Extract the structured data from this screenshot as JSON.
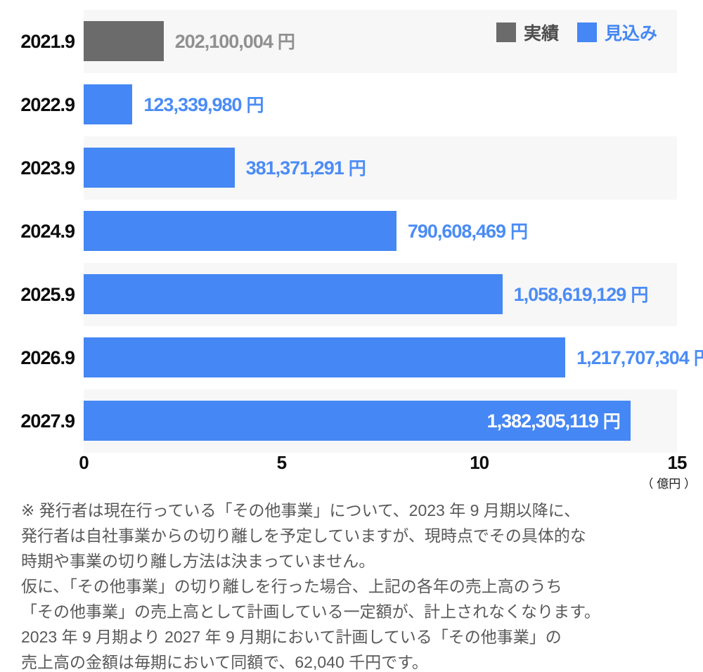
{
  "chart_data": {
    "type": "bar",
    "orientation": "horizontal",
    "categories": [
      "2021.9",
      "2022.9",
      "2023.9",
      "2024.9",
      "2025.9",
      "2026.9",
      "2027.9"
    ],
    "values": [
      202100004,
      123339980,
      381371291,
      790608469,
      1058619129,
      1217707304,
      1382305119
    ],
    "unit": "円",
    "x_axis": {
      "max_yen": 1500000000,
      "ticks_oku": [
        0,
        5,
        10,
        15
      ],
      "max_oku": 15,
      "unit_label": "（ 億円 ）"
    },
    "legend": [
      {
        "label": "実績",
        "color": "#6b6b6b",
        "text_color": "#4d4d4d"
      },
      {
        "label": "見込み",
        "color": "#4587f4",
        "text_color": "#4587f4"
      }
    ],
    "legend_position": "top-right",
    "bars": [
      {
        "year": "2021.9",
        "value_yen": 202100004,
        "label": "202,100,004",
        "series": "実績",
        "bar_color": "#6b6b6b",
        "label_color": "#909090",
        "label_inside": false
      },
      {
        "year": "2022.9",
        "value_yen": 123339980,
        "label": "123,339,980",
        "series": "見込み",
        "bar_color": "#4587f4",
        "label_color": "#4b8cf6",
        "label_inside": false
      },
      {
        "year": "2023.9",
        "value_yen": 381371291,
        "label": "381,371,291",
        "series": "見込み",
        "bar_color": "#4587f4",
        "label_color": "#4b8cf6",
        "label_inside": false
      },
      {
        "year": "2024.9",
        "value_yen": 790608469,
        "label": "790,608,469",
        "series": "見込み",
        "bar_color": "#4587f4",
        "label_color": "#4b8cf6",
        "label_inside": false
      },
      {
        "year": "2025.9",
        "value_yen": 1058619129,
        "label": "1,058,619,129",
        "series": "見込み",
        "bar_color": "#4587f4",
        "label_color": "#4b8cf6",
        "label_inside": false
      },
      {
        "year": "2026.9",
        "value_yen": 1217707304,
        "label": "1,217,707,304",
        "series": "見込み",
        "bar_color": "#4587f4",
        "label_color": "#4b8cf6",
        "label_inside": false
      },
      {
        "year": "2027.9",
        "value_yen": 1382305119,
        "label": "1,382,305,119",
        "series": "見込み",
        "bar_color": "#4587f4",
        "label_color": "#ffffff",
        "label_inside": true
      }
    ]
  },
  "footnote": {
    "lines": [
      "※ 発行者は現在行っている「その他事業」について、2023 年 9 月期以降に、",
      "発行者は自社事業からの切り離しを予定していますが、現時点でその具体的な",
      "時期や事業の切り離し方法は決まっていません。",
      "仮に、「その他事業」の切り離しを行った場合、上記の各年の売上高のうち",
      "「その他事業」の売上高として計画している一定額が、計上されなくなります。",
      "2023 年 9 月期より 2027 年 9 月期において計画している「その他事業」の",
      "売上高の金額は毎期において同額で、62,040 千円です。"
    ]
  }
}
